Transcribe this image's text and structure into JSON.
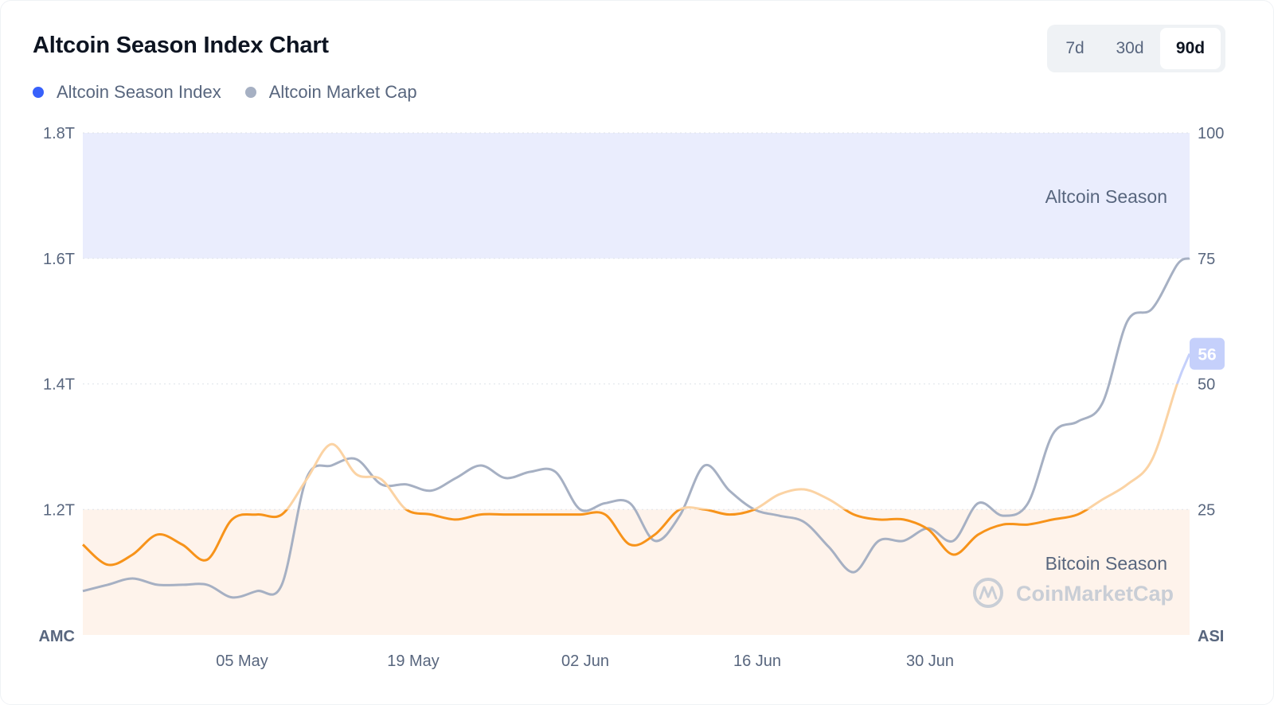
{
  "title": "Altcoin Season Index Chart",
  "legend": [
    {
      "label": "Altcoin Season Index",
      "color": "#3861fb"
    },
    {
      "label": "Altcoin Market Cap",
      "color": "#a6b0c3"
    }
  ],
  "range_buttons": [
    {
      "label": "7d",
      "active": false
    },
    {
      "label": "30d",
      "active": false
    },
    {
      "label": "90d",
      "active": true
    }
  ],
  "left_axis_name": "AMC",
  "right_axis_name": "ASI",
  "zones": {
    "altcoin_label": "Altcoin Season",
    "bitcoin_label": "Bitcoin Season"
  },
  "watermark": "CoinMarketCap",
  "current_badge": "56",
  "colors": {
    "asi_line": "#f7931a",
    "asi_line_high": "#c5d0fb",
    "amc_line": "#a6b0c3",
    "altcoin_zone": "#eaedfd",
    "bitcoin_zone": "#fef3eb",
    "badge": "#c5d0fb"
  },
  "chart_data": {
    "type": "line",
    "x_ticks": [
      "05 May",
      "19 May",
      "02 Jun",
      "16 Jun",
      "30 Jun"
    ],
    "left_axis": {
      "ticks": [
        "1.8T",
        "1.6T",
        "1.4T",
        "1.2T"
      ],
      "range_trillions": [
        1.0,
        1.8
      ]
    },
    "right_axis": {
      "ticks": [
        "100",
        "75",
        "50",
        "25"
      ],
      "range": [
        0,
        100
      ]
    },
    "zones": [
      {
        "name": "Altcoin Season",
        "from": 75,
        "to": 100
      },
      {
        "name": "Bitcoin Season",
        "from": 0,
        "to": 25
      }
    ],
    "x_range": [
      "2025-04-22",
      "2025-07-20"
    ],
    "series": [
      {
        "name": "Altcoin Season Index",
        "axis": "right",
        "points": [
          [
            "2025-04-22",
            18
          ],
          [
            "2025-04-24",
            14
          ],
          [
            "2025-04-26",
            16
          ],
          [
            "2025-04-28",
            20
          ],
          [
            "2025-04-30",
            18
          ],
          [
            "2025-05-02",
            15
          ],
          [
            "2025-05-04",
            23
          ],
          [
            "2025-05-06",
            24
          ],
          [
            "2025-05-08",
            24
          ],
          [
            "2025-05-10",
            31
          ],
          [
            "2025-05-12",
            38
          ],
          [
            "2025-05-14",
            32
          ],
          [
            "2025-05-16",
            31
          ],
          [
            "2025-05-18",
            25
          ],
          [
            "2025-05-20",
            24
          ],
          [
            "2025-05-22",
            23
          ],
          [
            "2025-05-24",
            24
          ],
          [
            "2025-05-26",
            24
          ],
          [
            "2025-05-28",
            24
          ],
          [
            "2025-05-30",
            24
          ],
          [
            "2025-06-01",
            24
          ],
          [
            "2025-06-03",
            24
          ],
          [
            "2025-06-05",
            18
          ],
          [
            "2025-06-07",
            20
          ],
          [
            "2025-06-09",
            25
          ],
          [
            "2025-06-11",
            25
          ],
          [
            "2025-06-13",
            24
          ],
          [
            "2025-06-15",
            25
          ],
          [
            "2025-06-17",
            28
          ],
          [
            "2025-06-19",
            29
          ],
          [
            "2025-06-21",
            27
          ],
          [
            "2025-06-23",
            24
          ],
          [
            "2025-06-25",
            23
          ],
          [
            "2025-06-27",
            23
          ],
          [
            "2025-06-29",
            21
          ],
          [
            "2025-07-01",
            16
          ],
          [
            "2025-07-03",
            20
          ],
          [
            "2025-07-05",
            22
          ],
          [
            "2025-07-07",
            22
          ],
          [
            "2025-07-09",
            23
          ],
          [
            "2025-07-11",
            24
          ],
          [
            "2025-07-13",
            27
          ],
          [
            "2025-07-15",
            30
          ],
          [
            "2025-07-17",
            35
          ],
          [
            "2025-07-19",
            50
          ],
          [
            "2025-07-20",
            56
          ]
        ]
      },
      {
        "name": "Altcoin Market Cap",
        "axis": "left",
        "unit": "T",
        "points": [
          [
            "2025-04-22",
            1.07
          ],
          [
            "2025-04-24",
            1.08
          ],
          [
            "2025-04-26",
            1.09
          ],
          [
            "2025-04-28",
            1.08
          ],
          [
            "2025-04-30",
            1.08
          ],
          [
            "2025-05-02",
            1.08
          ],
          [
            "2025-05-04",
            1.06
          ],
          [
            "2025-05-06",
            1.07
          ],
          [
            "2025-05-08",
            1.08
          ],
          [
            "2025-05-10",
            1.25
          ],
          [
            "2025-05-12",
            1.27
          ],
          [
            "2025-05-14",
            1.28
          ],
          [
            "2025-05-16",
            1.24
          ],
          [
            "2025-05-18",
            1.24
          ],
          [
            "2025-05-20",
            1.23
          ],
          [
            "2025-05-22",
            1.25
          ],
          [
            "2025-05-24",
            1.27
          ],
          [
            "2025-05-26",
            1.25
          ],
          [
            "2025-05-28",
            1.26
          ],
          [
            "2025-05-30",
            1.26
          ],
          [
            "2025-06-01",
            1.2
          ],
          [
            "2025-06-03",
            1.21
          ],
          [
            "2025-06-05",
            1.21
          ],
          [
            "2025-06-07",
            1.15
          ],
          [
            "2025-06-09",
            1.19
          ],
          [
            "2025-06-11",
            1.27
          ],
          [
            "2025-06-13",
            1.23
          ],
          [
            "2025-06-15",
            1.2
          ],
          [
            "2025-06-17",
            1.19
          ],
          [
            "2025-06-19",
            1.18
          ],
          [
            "2025-06-21",
            1.14
          ],
          [
            "2025-06-23",
            1.1
          ],
          [
            "2025-06-25",
            1.15
          ],
          [
            "2025-06-27",
            1.15
          ],
          [
            "2025-06-29",
            1.17
          ],
          [
            "2025-07-01",
            1.15
          ],
          [
            "2025-07-03",
            1.21
          ],
          [
            "2025-07-05",
            1.19
          ],
          [
            "2025-07-07",
            1.21
          ],
          [
            "2025-07-09",
            1.32
          ],
          [
            "2025-07-11",
            1.34
          ],
          [
            "2025-07-13",
            1.37
          ],
          [
            "2025-07-15",
            1.5
          ],
          [
            "2025-07-17",
            1.52
          ],
          [
            "2025-07-19",
            1.59
          ],
          [
            "2025-07-20",
            1.6
          ]
        ]
      }
    ],
    "legend_position": "top-left",
    "grid": true
  }
}
